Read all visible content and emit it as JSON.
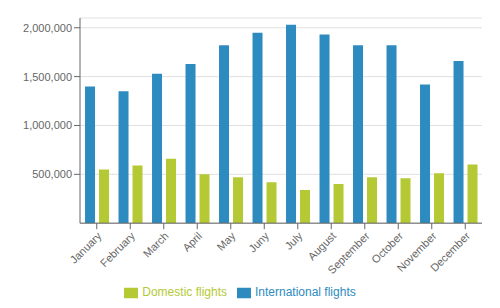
{
  "chart_data": {
    "type": "bar",
    "categories": [
      "January",
      "February",
      "March",
      "April",
      "May",
      "Juny",
      "July",
      "August",
      "September",
      "October",
      "November",
      "December"
    ],
    "series": [
      {
        "name": "International flights",
        "color": "#2e8bc0",
        "values": [
          1400000,
          1350000,
          1530000,
          1630000,
          1820000,
          1950000,
          2030000,
          1930000,
          1820000,
          1820000,
          1420000,
          1660000
        ]
      },
      {
        "name": "Domestic flights",
        "color": "#b5c935",
        "values": [
          550000,
          590000,
          660000,
          500000,
          470000,
          420000,
          340000,
          400000,
          470000,
          460000,
          510000,
          600000
        ]
      }
    ],
    "ylim": [
      0,
      2100000
    ],
    "yticks": [
      {
        "value": 500000,
        "label": "500,000"
      },
      {
        "value": 1000000,
        "label": "1,000,000"
      },
      {
        "value": 1500000,
        "label": "1,500,000"
      },
      {
        "value": 2000000,
        "label": "2,000,000"
      }
    ],
    "grid": true,
    "legend": "bottom"
  }
}
